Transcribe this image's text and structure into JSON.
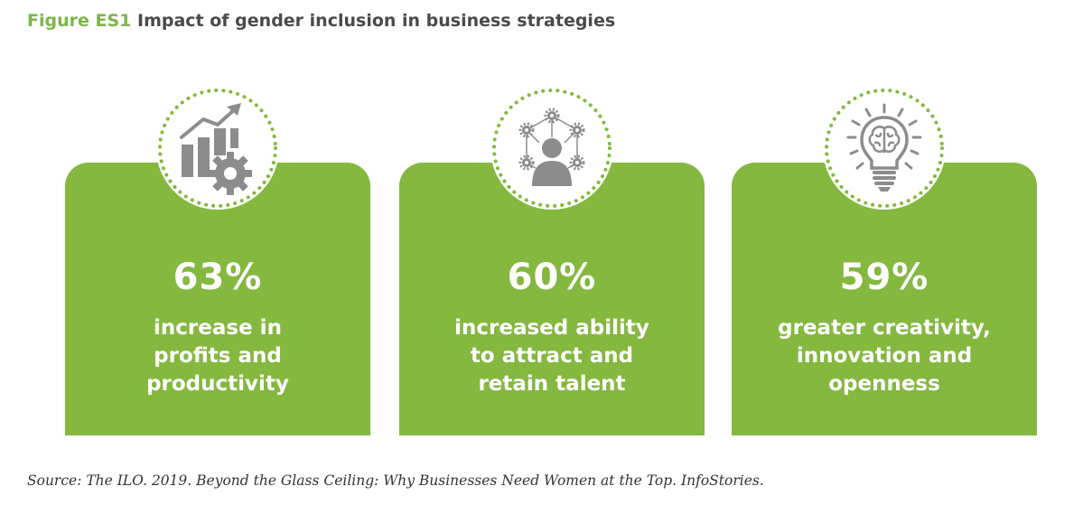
{
  "title": {
    "figure_label": "Figure ES1",
    "text": "Impact of gender inclusion in business strategies"
  },
  "colors": {
    "card_green": "#84b83f",
    "figure_label_green": "#7ab648",
    "icon_grey": "#8c8c8c",
    "dots_green": "#84b83f"
  },
  "cards": [
    {
      "icon": "bar-chart-gear-icon",
      "stat": "63%",
      "lines": [
        "increase in",
        "profits and",
        "productivity"
      ]
    },
    {
      "icon": "person-network-icon",
      "stat": "60%",
      "lines": [
        "increased ability",
        "to attract and",
        "retain talent"
      ]
    },
    {
      "icon": "lightbulb-brain-icon",
      "stat": "59%",
      "lines": [
        "greater creativity,",
        "innovation and",
        "openness"
      ]
    }
  ],
  "source": "Source: The ILO. 2019. Beyond the Glass Ceiling: Why Businesses Need Women at the Top. InfoStories."
}
